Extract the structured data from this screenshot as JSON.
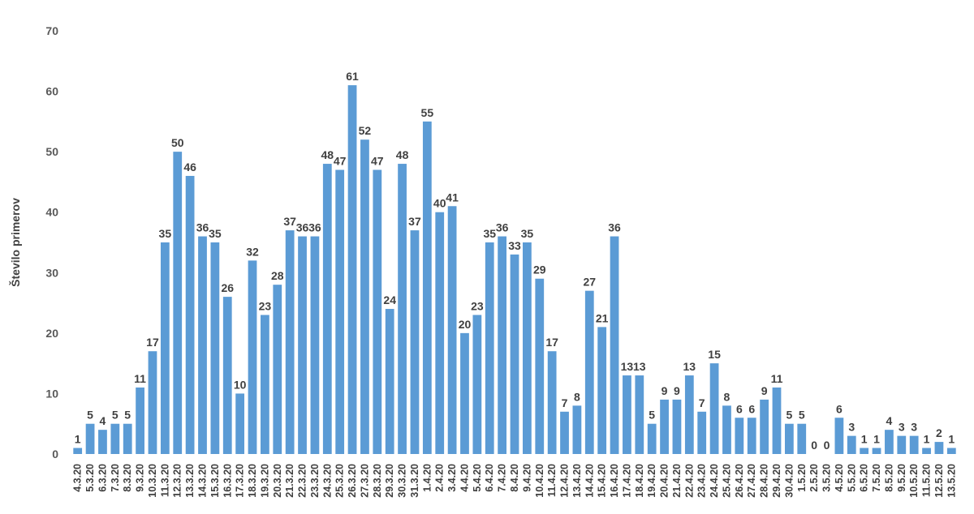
{
  "chart_data": {
    "type": "bar",
    "title": "",
    "xlabel": "",
    "ylabel": "Število primerov",
    "ylim": [
      0,
      70
    ],
    "yticks": [
      0,
      10,
      20,
      30,
      40,
      50,
      60,
      70
    ],
    "grid": false,
    "legend": "none",
    "bar_color": "#5b9bd5",
    "categories": [
      "4.3.20",
      "5.3.20",
      "6.3.20",
      "7.3.20",
      "8.3.20",
      "9.3.20",
      "10.3.20",
      "11.3.20",
      "12.3.20",
      "13.3.20",
      "14.3.20",
      "15.3.20",
      "16.3.20",
      "17.3.20",
      "18.3.20",
      "19.3.20",
      "20.3.20",
      "21.3.20",
      "22.3.20",
      "23.3.20",
      "24.3.20",
      "25.3.20",
      "26.3.20",
      "27.3.20",
      "28.3.20",
      "29.3.20",
      "30.3.20",
      "31.3.20",
      "1.4.20",
      "2.4.20",
      "3.4.20",
      "4.4.20",
      "5.4.20",
      "6.4.20",
      "7.4.20",
      "8.4.20",
      "9.4.20",
      "10.4.20",
      "11.4.20",
      "12.4.20",
      "13.4.20",
      "14.4.20",
      "15.4.20",
      "16.4.20",
      "17.4.20",
      "18.4.20",
      "19.4.20",
      "20.4.20",
      "21.4.20",
      "22.4.20",
      "23.4.20",
      "24.4.20",
      "25.4.20",
      "26.4.20",
      "27.4.20",
      "28.4.20",
      "29.4.20",
      "30.4.20",
      "1.5.20",
      "2.5.20",
      "3.5.20",
      "4.5.20",
      "5.5.20",
      "6.5.20",
      "7.5.20",
      "8.5.20",
      "9.5.20",
      "10.5.20",
      "11.5.20",
      "12.5.20",
      "13.5.20"
    ],
    "values": [
      1,
      5,
      4,
      5,
      5,
      11,
      17,
      35,
      50,
      46,
      36,
      35,
      26,
      10,
      32,
      23,
      28,
      37,
      36,
      36,
      48,
      47,
      61,
      52,
      47,
      24,
      48,
      37,
      55,
      40,
      41,
      20,
      23,
      35,
      36,
      33,
      35,
      29,
      17,
      7,
      8,
      27,
      21,
      36,
      13,
      13,
      5,
      9,
      9,
      13,
      7,
      15,
      8,
      6,
      6,
      9,
      11,
      5,
      5,
      0,
      0,
      6,
      3,
      1,
      1,
      4,
      3,
      3,
      1,
      2,
      1
    ]
  }
}
